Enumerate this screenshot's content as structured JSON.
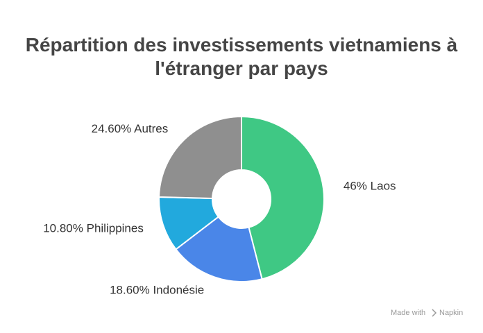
{
  "chart_data": {
    "type": "donut",
    "title": "Répartition des investissements vietnamiens à l'étranger par pays",
    "categories": [
      "Laos",
      "Indonésie",
      "Philippines",
      "Autres"
    ],
    "values": [
      46,
      18.6,
      10.8,
      24.6
    ],
    "value_labels": [
      "46%",
      "18.60%",
      "10.80%",
      "24.60%"
    ],
    "colors": [
      "#3fc884",
      "#4a86e8",
      "#22a9dd",
      "#8f8f8f"
    ]
  },
  "watermark": {
    "text": "Made with",
    "brand": "Napkin"
  }
}
